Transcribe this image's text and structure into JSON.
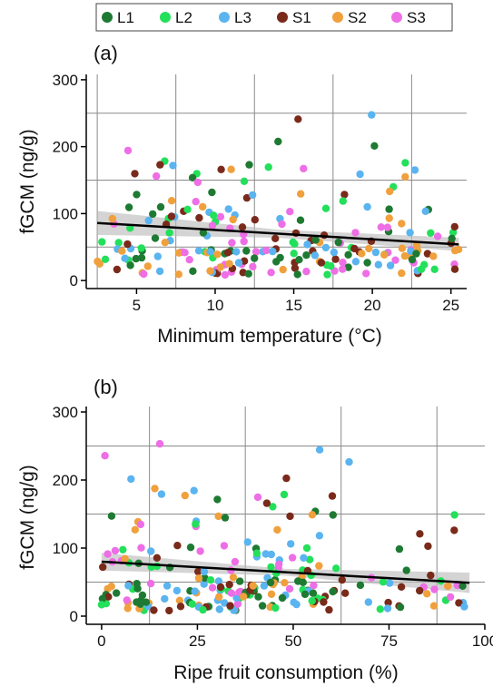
{
  "legend": {
    "entries": [
      {
        "label": "L1",
        "color": "#1e7a32"
      },
      {
        "label": "L2",
        "color": "#22e05a"
      },
      {
        "label": "L3",
        "color": "#5ab4f0"
      },
      {
        "label": "S1",
        "color": "#7a2a1a"
      },
      {
        "label": "S2",
        "color": "#f0a03c"
      },
      {
        "label": "S3",
        "color": "#ee6ee6"
      }
    ]
  },
  "chart_data": [
    {
      "type": "scatter",
      "panel_label": "(a)",
      "xlabel": "Minimum temperature (°C)",
      "ylabel": "fGCM (ng/g)",
      "xlim": [
        1.8,
        26.0
      ],
      "ylim": [
        -12,
        308
      ],
      "xticks": [
        5,
        10,
        15,
        20,
        25
      ],
      "yticks": [
        0,
        100,
        200,
        300
      ],
      "grid": {
        "vertical": [
          2.5,
          7.5,
          12.5,
          17.5,
          22.5
        ],
        "horizontal": [
          50,
          150,
          250
        ]
      },
      "trend": {
        "x": [
          2.5,
          25.5
        ],
        "y": [
          86,
          54
        ],
        "ci_halfwidth": [
          18,
          10
        ],
        "ci_mid": 6
      }
    },
    {
      "type": "scatter",
      "panel_label": "(b)",
      "xlabel": "Ripe fruit consumption (%)",
      "ylabel": "fGCM (ng/g)",
      "xlim": [
        -4,
        100
      ],
      "ylim": [
        -12,
        308
      ],
      "xticks": [
        0,
        25,
        50,
        75,
        100
      ],
      "yticks": [
        0,
        100,
        200,
        300
      ],
      "grid": {
        "vertical": [
          12.5,
          37.5,
          62.5,
          87.5
        ],
        "horizontal": [
          50,
          150,
          250
        ]
      },
      "trend": {
        "x": [
          0,
          96
        ],
        "y": [
          80,
          49
        ],
        "ci_halfwidth": [
          13,
          15
        ],
        "ci_mid": 5
      }
    }
  ]
}
